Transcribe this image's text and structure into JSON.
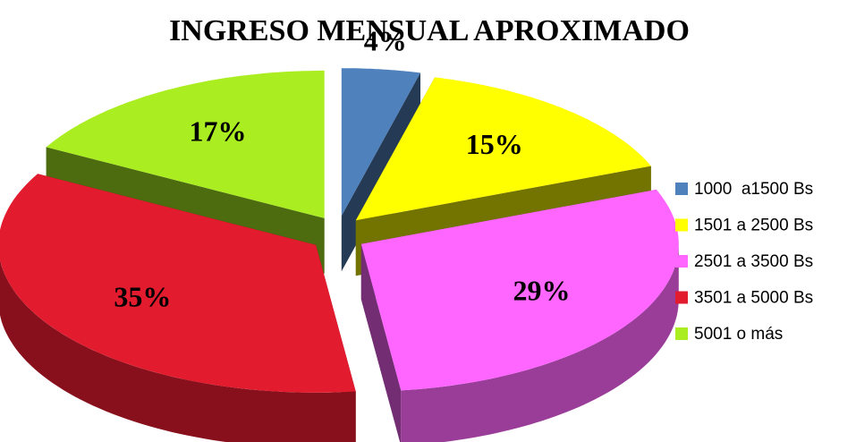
{
  "chart_data": {
    "type": "pie3d",
    "title": "INGRESO MENSUAL APROXIMADO",
    "categories": [
      "1000  a1500 Bs",
      "1501 a 2500 Bs",
      "2501 a 3500 Bs",
      "3501 a 5000 Bs",
      "5001 o más"
    ],
    "values": [
      4,
      15,
      29,
      35,
      17
    ],
    "value_labels": [
      "4%",
      "15%",
      "29%",
      "35%",
      "17%"
    ],
    "colors": [
      "#4f81bd",
      "#ffff00",
      "#ff66ff",
      "#e31b2e",
      "#aaee22"
    ],
    "legend": "right"
  }
}
